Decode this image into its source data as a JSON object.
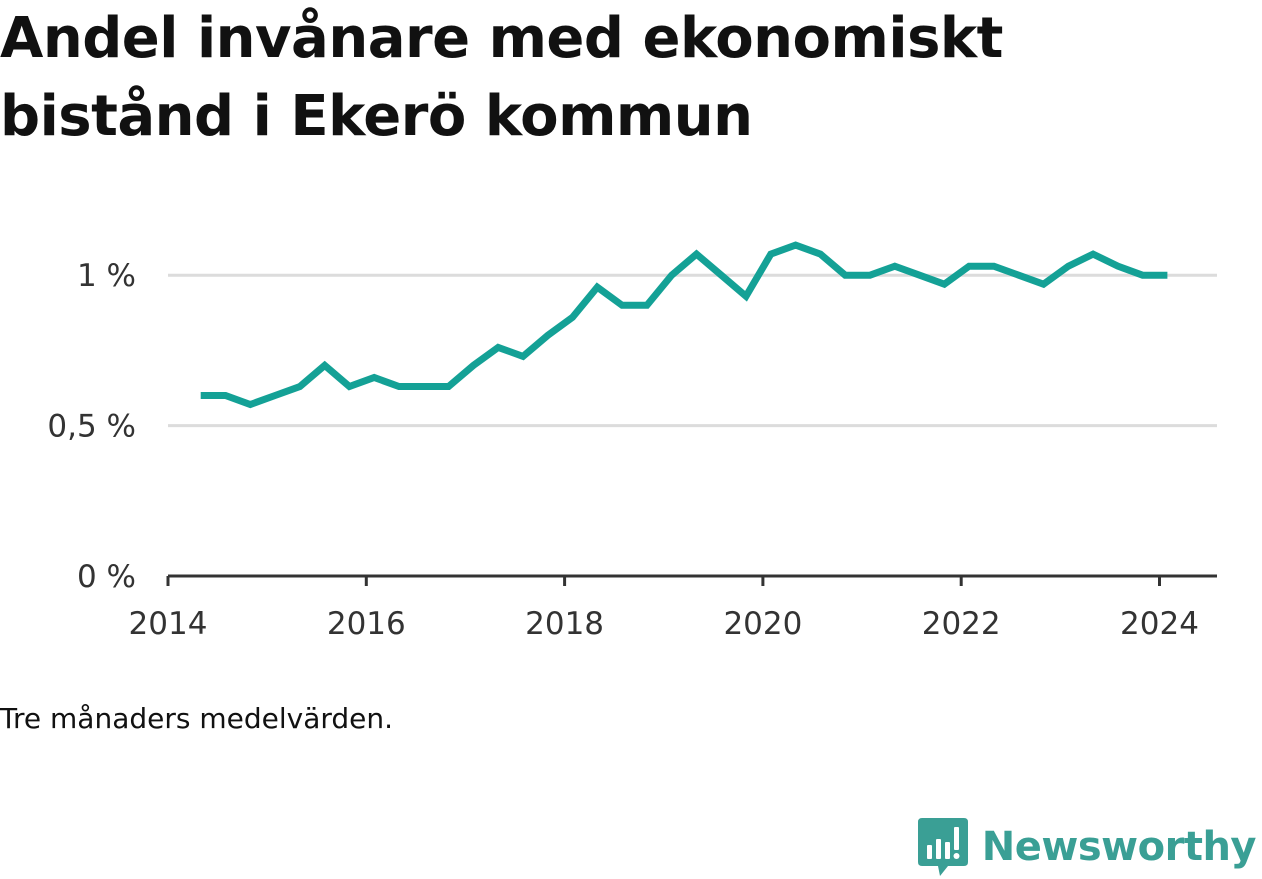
{
  "title": "Andel invånare med ekonomiskt bistånd i Ekerö kommun",
  "note": "Tre månaders medelvärden.",
  "brand": {
    "name": "Newsworthy",
    "icon": "bar-chart-speech-bubble-icon",
    "color": "#3a9f95"
  },
  "colors": {
    "line": "#14a196",
    "grid": "#dcdcdc",
    "axis": "#333333"
  },
  "chart_data": {
    "type": "line",
    "title": "Andel invånare med ekonomiskt bistånd i Ekerö kommun",
    "xlabel": "",
    "ylabel": "",
    "x_ticks": [
      2014,
      2016,
      2018,
      2020,
      2022,
      2024
    ],
    "x_tick_labels": [
      "2014",
      "2016",
      "2018",
      "2020",
      "2022",
      "2024"
    ],
    "y_ticks": [
      0,
      0.5,
      1
    ],
    "y_tick_labels": [
      "0 %",
      "0,5 %",
      "1 %"
    ],
    "xlim": [
      2014.0,
      2024.58
    ],
    "ylim": [
      0,
      1.25
    ],
    "grid": true,
    "legend": "none",
    "series": [
      {
        "x": [
          2014.33,
          2014.58,
          2014.83,
          2015.08,
          2015.33,
          2015.58,
          2015.83,
          2016.08,
          2016.33,
          2016.58,
          2016.83,
          2017.08,
          2017.33,
          2017.58,
          2017.83,
          2018.08,
          2018.33,
          2018.58,
          2018.83,
          2019.08,
          2019.33,
          2019.58,
          2019.83,
          2020.08,
          2020.33,
          2020.58,
          2020.83,
          2021.08,
          2021.33,
          2021.58,
          2021.83,
          2022.08,
          2022.33,
          2022.58,
          2022.83,
          2023.08,
          2023.33,
          2023.58,
          2023.83,
          2024.08
        ],
        "values": [
          0.6,
          0.6,
          0.57,
          0.6,
          0.63,
          0.7,
          0.63,
          0.66,
          0.63,
          0.63,
          0.63,
          0.7,
          0.76,
          0.73,
          0.8,
          0.86,
          0.96,
          0.9,
          0.9,
          1.0,
          1.07,
          1.0,
          0.93,
          1.07,
          1.1,
          1.07,
          1.0,
          1.0,
          1.03,
          1.0,
          0.97,
          1.03,
          1.03,
          1.0,
          0.97,
          1.03,
          1.07,
          1.03,
          1.0,
          1.0
        ]
      }
    ]
  }
}
